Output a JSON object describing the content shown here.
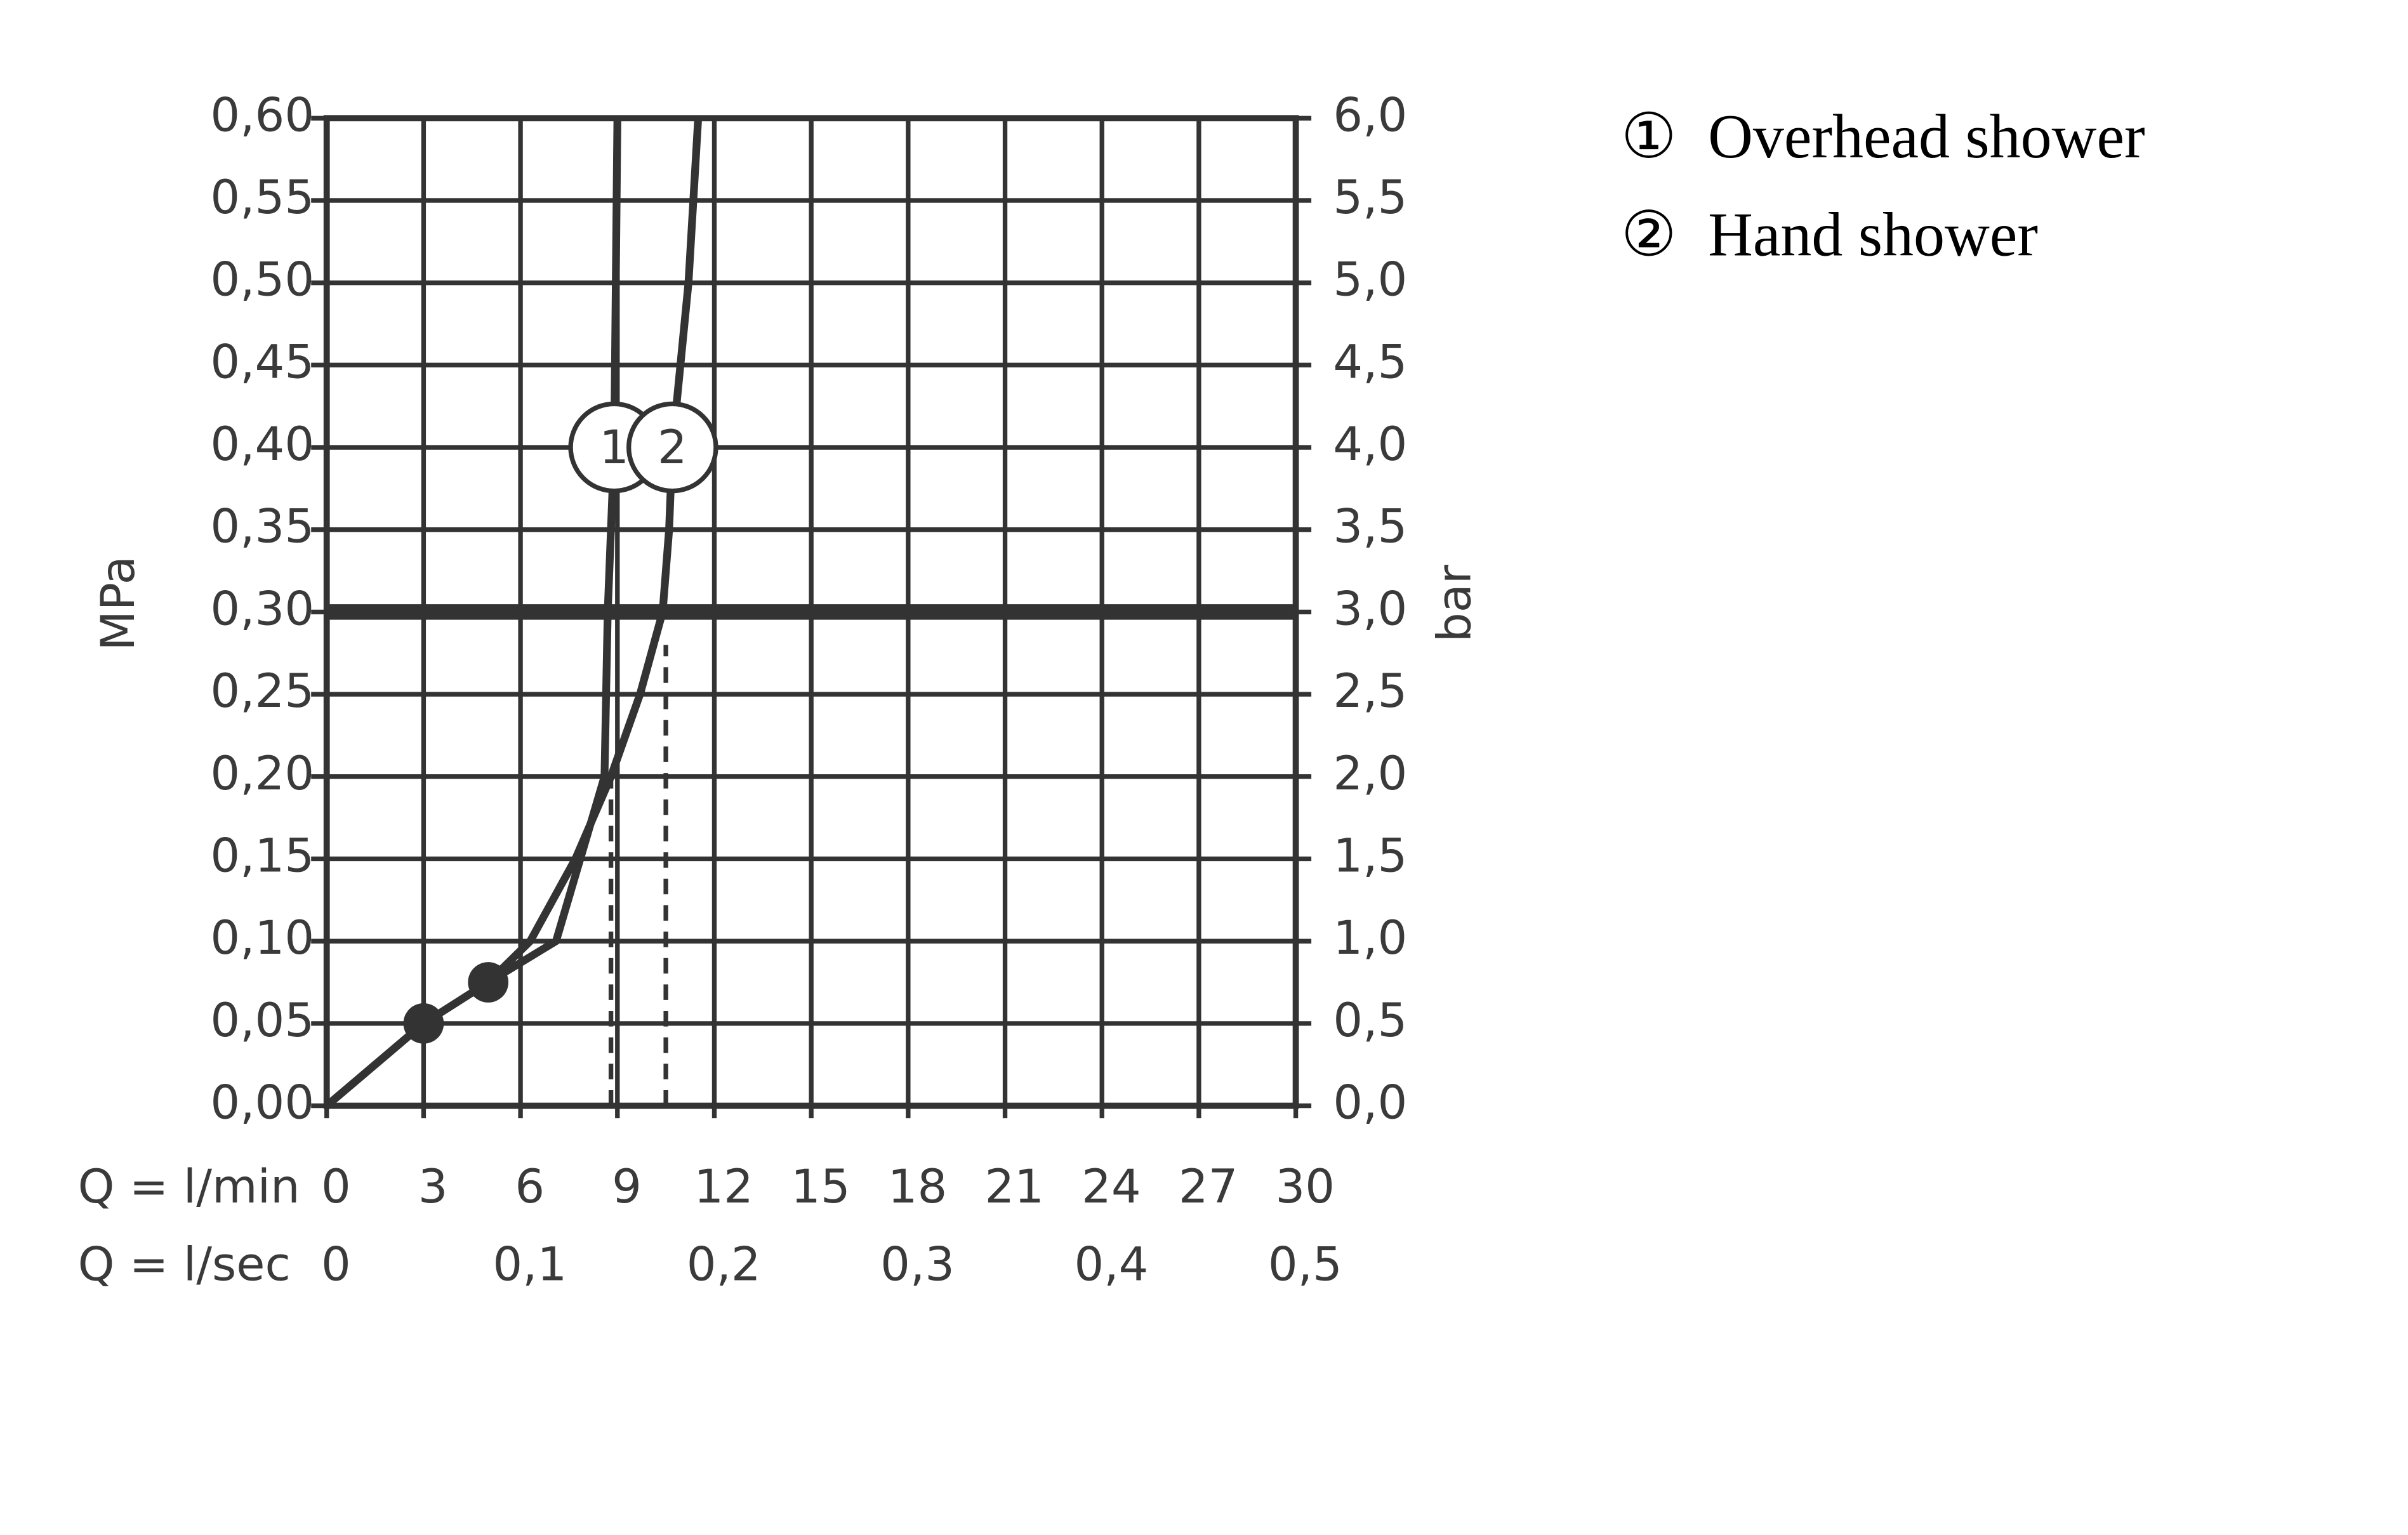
{
  "chart_data": {
    "type": "line",
    "x_label": "Q = l/min",
    "x2_label": "Q = l/sec",
    "y_label": "MPa",
    "y2_label": "bar",
    "xlim": [
      0,
      30
    ],
    "xticks": [
      0,
      3,
      6,
      9,
      12,
      15,
      18,
      21,
      24,
      27,
      30
    ],
    "x2lim": [
      0,
      0.5
    ],
    "x2ticks": [
      {
        "value": 0,
        "label": "0"
      },
      {
        "value": 0.1,
        "label": "0,1"
      },
      {
        "value": 0.2,
        "label": "0,2"
      },
      {
        "value": 0.3,
        "label": "0,3"
      },
      {
        "value": 0.4,
        "label": "0,4"
      },
      {
        "value": 0.5,
        "label": "0,5"
      }
    ],
    "ylim": [
      0,
      0.6
    ],
    "yticks": [
      {
        "value": 0,
        "label": "0,00"
      },
      {
        "value": 0.05,
        "label": "0,05"
      },
      {
        "value": 0.1,
        "label": "0,10"
      },
      {
        "value": 0.15,
        "label": "0,15"
      },
      {
        "value": 0.2,
        "label": "0,20"
      },
      {
        "value": 0.25,
        "label": "0,25"
      },
      {
        "value": 0.3,
        "label": "0,30"
      },
      {
        "value": 0.35,
        "label": "0,35"
      },
      {
        "value": 0.4,
        "label": "0,40"
      },
      {
        "value": 0.45,
        "label": "0,45"
      },
      {
        "value": 0.5,
        "label": "0,50"
      },
      {
        "value": 0.55,
        "label": "0,55"
      },
      {
        "value": 0.6,
        "label": "0,60"
      }
    ],
    "y2lim": [
      0,
      6
    ],
    "y2ticks": [
      {
        "value": 0,
        "label": "0,0"
      },
      {
        "value": 0.5,
        "label": "0,5"
      },
      {
        "value": 1,
        "label": "1,0"
      },
      {
        "value": 1.5,
        "label": "1,5"
      },
      {
        "value": 2,
        "label": "2,0"
      },
      {
        "value": 2.5,
        "label": "2,5"
      },
      {
        "value": 3,
        "label": "3,0"
      },
      {
        "value": 3.5,
        "label": "3,5"
      },
      {
        "value": 4,
        "label": "4,0"
      },
      {
        "value": 4.5,
        "label": "4,5"
      },
      {
        "value": 5,
        "label": "5,0"
      },
      {
        "value": 5.5,
        "label": "5,5"
      },
      {
        "value": 6,
        "label": "6,0"
      }
    ],
    "grid": true,
    "color": "#333333",
    "reference_line": 0.3,
    "series": [
      {
        "name": "Overhead shower",
        "marker": "①",
        "label": "1",
        "color": "#333333",
        "x": [
          0,
          3,
          5,
          7.1,
          8.6,
          8.7,
          8.9,
          9.0
        ],
        "values": [
          0,
          0.05,
          0.075,
          0.1,
          0.2,
          0.3,
          0.4,
          0.6
        ]
      },
      {
        "name": "Hand shower",
        "marker": "②",
        "label": "2",
        "color": "#333333",
        "x": [
          0,
          3,
          5,
          6.3,
          7.7,
          8.8,
          9.7,
          10.4,
          10.6,
          10.7,
          11.2,
          11.5
        ],
        "values": [
          0,
          0.05,
          0.075,
          0.1,
          0.15,
          0.2,
          0.25,
          0.3,
          0.35,
          0.4,
          0.5,
          0.6
        ]
      }
    ],
    "points": [
      {
        "x": 3,
        "y": 0.05
      },
      {
        "x": 5,
        "y": 0.075
      }
    ],
    "dashed_lines": [
      {
        "x": 8.8,
        "y": 0.2
      },
      {
        "x": 10.5,
        "y": 0.28
      }
    ]
  }
}
